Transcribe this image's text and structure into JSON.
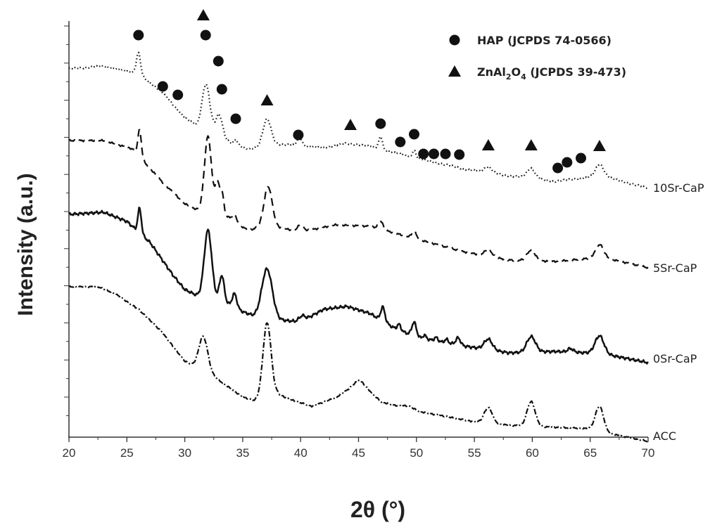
{
  "chart_data": {
    "type": "line",
    "xlabel": "2θ (°)",
    "ylabel": "Intensity (a.u.)",
    "xlim": [
      20,
      70
    ],
    "xticks": [
      "20",
      "25",
      "30",
      "35",
      "40",
      "45",
      "50",
      "55",
      "60",
      "65",
      "70"
    ],
    "legend": {
      "placement": "top-right",
      "items": [
        {
          "marker": "circle",
          "label": "HAP (JCPDS 74-0566)"
        },
        {
          "marker": "triangle",
          "label_main": "ZnAl",
          "label_sub1": "2",
          "label_mid": "O",
          "label_sub2": "4",
          "label_tail": " (JCPDS 39-473)"
        }
      ]
    },
    "series": [
      {
        "name": "10Sr-CaP",
        "style": "dotted"
      },
      {
        "name": "5Sr-CaP",
        "style": "dashed"
      },
      {
        "name": "0Sr-CaP",
        "style": "solid"
      },
      {
        "name": "ACC",
        "style": "dashdot"
      }
    ],
    "markers": {
      "hap_2theta": [
        26.0,
        28.1,
        29.4,
        31.8,
        32.9,
        33.2,
        34.4,
        39.8,
        46.9,
        48.6,
        49.8,
        50.6,
        51.5,
        52.5,
        53.7,
        62.2,
        63.0,
        64.2
      ],
      "znal2o4_2theta": [
        31.6,
        37.1,
        44.3,
        56.2,
        59.9,
        65.8
      ]
    }
  }
}
